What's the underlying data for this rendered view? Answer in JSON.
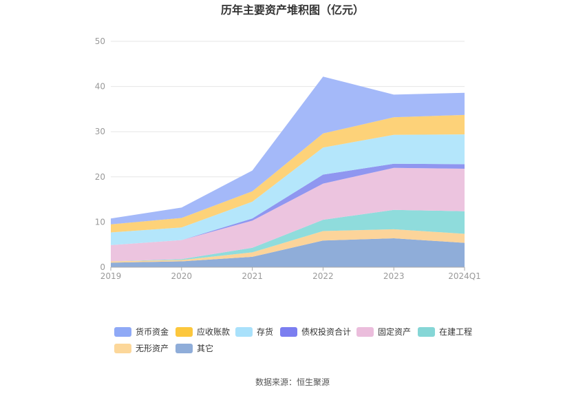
{
  "title": "历年主要资产堆积图（亿元）",
  "source": "数据来源：恒生聚源",
  "chart_data": {
    "type": "area",
    "stacked": true,
    "categories": [
      "2019",
      "2020",
      "2021",
      "2022",
      "2023",
      "2024Q1"
    ],
    "ylim": [
      0,
      50
    ],
    "yticks": [
      0,
      10,
      20,
      30,
      40,
      50
    ],
    "grid": true,
    "legend_position": "bottom",
    "series": [
      {
        "name": "其它",
        "color": "#8fadd9",
        "values": [
          1.0,
          1.3,
          2.3,
          5.9,
          6.4,
          5.4
        ]
      },
      {
        "name": "无形资产",
        "color": "#fcd49a",
        "values": [
          0.3,
          0.3,
          1.0,
          2.1,
          2.0,
          2.0
        ]
      },
      {
        "name": "在建工程",
        "color": "#8fdcdc",
        "values": [
          0.0,
          0.2,
          1.0,
          2.5,
          4.3,
          5.0
        ]
      },
      {
        "name": "固定资产",
        "color": "#ecc4df",
        "values": [
          3.6,
          4.2,
          6.0,
          8.0,
          9.3,
          9.4
        ]
      },
      {
        "name": "债权投资合计",
        "color": "#8f96f0",
        "values": [
          0.0,
          0.0,
          0.5,
          2.0,
          0.9,
          1.0
        ]
      },
      {
        "name": "存货",
        "color": "#b4e6fb",
        "values": [
          2.8,
          2.8,
          3.7,
          6.0,
          6.4,
          6.6
        ]
      },
      {
        "name": "应收账款",
        "color": "#fdd279",
        "values": [
          1.8,
          2.1,
          2.3,
          3.1,
          3.9,
          4.3
        ]
      },
      {
        "name": "货币资金",
        "color": "#a4b9f9",
        "values": [
          1.3,
          2.3,
          4.6,
          12.6,
          5.0,
          4.9
        ]
      }
    ],
    "legend": [
      {
        "name": "货币资金",
        "color": "#8fa9f6"
      },
      {
        "name": "应收账款",
        "color": "#fcc73d"
      },
      {
        "name": "存货",
        "color": "#a9e1fb"
      },
      {
        "name": "债权投资合计",
        "color": "#7b7ef0"
      },
      {
        "name": "固定资产",
        "color": "#ebbddc"
      },
      {
        "name": "在建工程",
        "color": "#85d6d6"
      },
      {
        "name": "无形资产",
        "color": "#fcd79a"
      },
      {
        "name": "其它",
        "color": "#8fadd9"
      }
    ]
  }
}
